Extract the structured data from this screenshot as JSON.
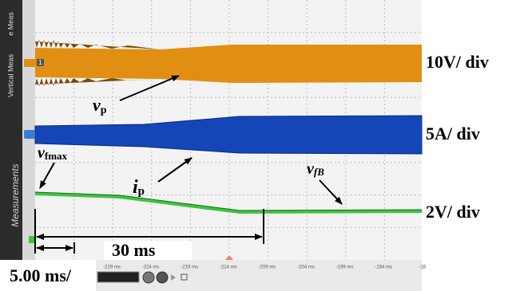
{
  "side_tabs": [
    "e Meas",
    "Vertical Meas"
  ],
  "watermark": "Measurements",
  "channel_marker": "1",
  "annotations": {
    "vp": {
      "symbol": "v",
      "subscript": "p"
    },
    "ip": {
      "symbol": "i",
      "subscript": "p"
    },
    "vfmax": {
      "symbol": "v",
      "subscript": "fmax"
    },
    "vfB": {
      "symbol": "v",
      "subscript": "fB"
    },
    "span": "30 ms"
  },
  "scale_labels": [
    "10V/ div",
    "5A/ div",
    "2V/ div"
  ],
  "timebase": "5.00 ms/",
  "time_axis": {
    "ticks": [
      "-229 ms",
      "-224 ms",
      "-219 ms",
      "-214 ms",
      "-209 ms",
      "-204 ms",
      "-199 ms",
      "-194 ms",
      "-18"
    ]
  }
}
